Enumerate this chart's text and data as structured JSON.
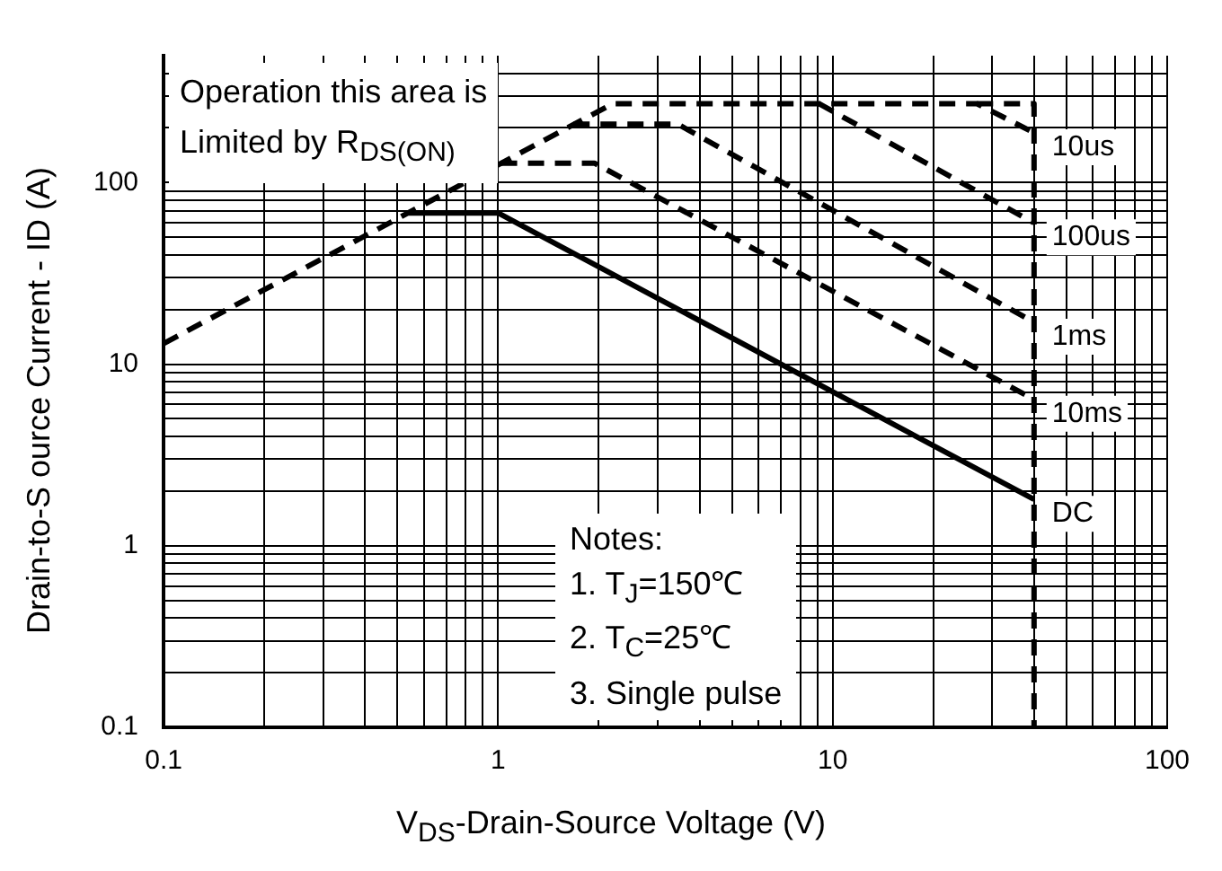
{
  "chart_data": {
    "type": "line",
    "xlabel": "V$_{DS}$-Drain-Source Voltage (V)",
    "ylabel": "Drain-to-S ource Current - ID (A)",
    "log": "xy",
    "grid": true,
    "legend": false,
    "marker": "none",
    "xlim": [
      0.1,
      100
    ],
    "ylim": [
      0.1,
      500
    ],
    "xticks": [
      0.1,
      {
        "value": 0.2,
        "label": null
      },
      {
        "value": 0.3,
        "label": null
      },
      {
        "value": 0.4,
        "label": null
      },
      {
        "value": 0.5,
        "label": null
      },
      {
        "value": 0.6,
        "label": null
      },
      {
        "value": 0.7,
        "label": null
      },
      {
        "value": 0.8,
        "label": null
      },
      {
        "value": 0.9,
        "label": null
      },
      1,
      {
        "value": 2,
        "label": null
      },
      {
        "value": 3,
        "label": null
      },
      {
        "value": 4,
        "label": null
      },
      {
        "value": 5,
        "label": null
      },
      {
        "value": 6,
        "label": null
      },
      {
        "value": 7,
        "label": null
      },
      {
        "value": 8,
        "label": null
      },
      {
        "value": 9,
        "label": null
      },
      10,
      {
        "value": 20,
        "label": null
      },
      {
        "value": 30,
        "label": null
      },
      {
        "value": 40,
        "label": null
      },
      {
        "value": 50,
        "label": null
      },
      {
        "value": 60,
        "label": null
      },
      {
        "value": 70,
        "label": null
      },
      {
        "value": 80,
        "label": null
      },
      {
        "value": 90,
        "label": null
      },
      100
    ],
    "yticks": [
      0.1,
      {
        "value": 0.2,
        "label": null
      },
      {
        "value": 0.3,
        "label": null
      },
      {
        "value": 0.4,
        "label": null
      },
      {
        "value": 0.5,
        "label": null
      },
      {
        "value": 0.6,
        "label": null
      },
      {
        "value": 0.7,
        "label": null
      },
      {
        "value": 0.8,
        "label": null
      },
      {
        "value": 0.9,
        "label": null
      },
      1,
      {
        "value": 2,
        "label": null
      },
      {
        "value": 3,
        "label": null
      },
      {
        "value": 4,
        "label": null
      },
      {
        "value": 5,
        "label": null
      },
      {
        "value": 6,
        "label": null
      },
      {
        "value": 7,
        "label": null
      },
      {
        "value": 8,
        "label": null
      },
      {
        "value": 9,
        "label": null
      },
      10,
      {
        "value": 20,
        "label": null
      },
      {
        "value": 30,
        "label": null
      },
      {
        "value": 40,
        "label": null
      },
      {
        "value": 50,
        "label": null
      },
      {
        "value": 60,
        "label": null
      },
      {
        "value": 70,
        "label": null
      },
      {
        "value": 80,
        "label": null
      },
      {
        "value": 90,
        "label": null
      },
      100,
      {
        "value": 200,
        "label": null
      },
      {
        "value": 300,
        "label": null
      },
      {
        "value": 400,
        "label": null
      }
    ],
    "series": [
      {
        "name": "10us",
        "color": "#000000",
        "line_style": "dashed",
        "x": [
          0.1,
          2.2,
          27,
          40
        ],
        "values": [
          13,
          272,
          272,
          188
        ]
      },
      {
        "name": "100us",
        "color": "#000000",
        "line_style": "dashed",
        "x": [
          9.1,
          40
        ],
        "values": [
          272,
          60
        ]
      },
      {
        "name": "1ms",
        "color": "#000000",
        "line_style": "dashed",
        "x": [
          1.68,
          3.44,
          40
        ],
        "values": [
          210,
          210,
          17
        ]
      },
      {
        "name": "10ms",
        "color": "#000000",
        "line_style": "dashed",
        "x": [
          1.02,
          1.94,
          40
        ],
        "values": [
          128,
          128,
          6.4
        ]
      },
      {
        "name": "DC",
        "color": "#000000",
        "line_style": "solid",
        "x": [
          0.54,
          1,
          40
        ],
        "values": [
          68,
          68,
          1.8
        ]
      },
      {
        "color": "#000000",
        "line_style": "dashed",
        "x": [
          27,
          40,
          40
        ],
        "values": [
          272,
          272,
          0.1
        ]
      }
    ],
    "annotations": [
      "Operation this area is",
      "Limited  by R$_{DS(ON)}$",
      "Notes:",
      "1. T$_{J}$=150℃",
      "2. T$_{C}$=25℃",
      "3. Single pulse"
    ]
  }
}
